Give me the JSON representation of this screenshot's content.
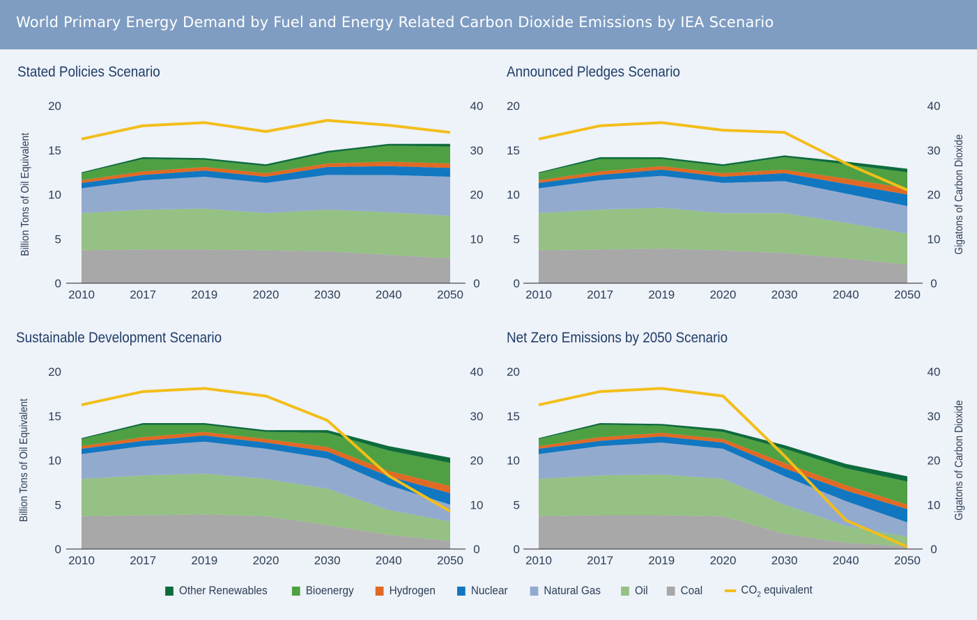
{
  "header": {
    "title": "World Primary Energy Demand by Fuel and Energy Related Carbon Dioxide Emissions by IEA Scenario"
  },
  "legend": [
    {
      "key": "other_renewables",
      "label": "Other Renewables",
      "color": "#0e6b3c",
      "kind": "box"
    },
    {
      "key": "bioenergy",
      "label": "Bioenergy",
      "color": "#4fa043",
      "kind": "box"
    },
    {
      "key": "hydrogen",
      "label": "Hydrogen",
      "color": "#e06a25",
      "kind": "box"
    },
    {
      "key": "nuclear",
      "label": "Nuclear",
      "color": "#1177c0",
      "kind": "box"
    },
    {
      "key": "natural_gas",
      "label": "Natural Gas",
      "color": "#93aacf",
      "kind": "box"
    },
    {
      "key": "oil",
      "label": "Oil",
      "color": "#95c184",
      "kind": "box"
    },
    {
      "key": "coal",
      "label": "Coal",
      "color": "#a8a8a8",
      "kind": "box"
    },
    {
      "key": "co2",
      "label": "CO2 equivalent",
      "color": "#f2be1a",
      "kind": "line"
    }
  ],
  "chart_data": [
    {
      "type": "area",
      "title": "Stated Policies Scenario",
      "ylabel": "Billion Tons of Oil Equivalent",
      "y2label": "",
      "categories": [
        "2010",
        "2017",
        "2019",
        "2020",
        "2030",
        "2040",
        "2050"
      ],
      "ylim": [
        0,
        20
      ],
      "yticks": [
        "0",
        "5",
        "10",
        "15",
        "20"
      ],
      "y2lim": [
        0,
        40
      ],
      "y2ticks": [
        "0",
        "10",
        "20",
        "30",
        "40"
      ],
      "series": [
        {
          "name": "Coal",
          "values": [
            3.7,
            3.8,
            3.8,
            3.7,
            3.6,
            3.2,
            2.8
          ]
        },
        {
          "name": "Oil",
          "values": [
            4.2,
            4.5,
            4.6,
            4.2,
            4.7,
            4.8,
            4.8
          ]
        },
        {
          "name": "Natural Gas",
          "values": [
            2.8,
            3.3,
            3.6,
            3.4,
            3.9,
            4.2,
            4.4
          ]
        },
        {
          "name": "Nuclear",
          "values": [
            0.6,
            0.6,
            0.7,
            0.7,
            0.9,
            1.0,
            1.0
          ]
        },
        {
          "name": "Hydrogen",
          "values": [
            0.3,
            0.4,
            0.4,
            0.4,
            0.4,
            0.5,
            0.5
          ]
        },
        {
          "name": "Bioenergy",
          "values": [
            0.8,
            1.4,
            0.8,
            0.8,
            1.2,
            1.8,
            1.9
          ]
        },
        {
          "name": "Other Renewables",
          "values": [
            0.1,
            0.2,
            0.2,
            0.2,
            0.2,
            0.2,
            0.3
          ]
        }
      ],
      "co2": {
        "name": "CO2 equivalent",
        "values": [
          32.5,
          35.5,
          36.2,
          34.2,
          36.7,
          35.6,
          34.0
        ]
      }
    },
    {
      "type": "area",
      "title": "Announced Pledges Scenario",
      "ylabel": "",
      "y2label": "Gigatons of Carbon Dioxide",
      "categories": [
        "2010",
        "2017",
        "2019",
        "2020",
        "2030",
        "2040",
        "2050"
      ],
      "ylim": [
        0,
        20
      ],
      "yticks": [
        "0",
        "5",
        "10",
        "15",
        "20"
      ],
      "y2lim": [
        0,
        40
      ],
      "y2ticks": [
        "0",
        "10",
        "20",
        "30",
        "40"
      ],
      "series": [
        {
          "name": "Coal",
          "values": [
            3.7,
            3.8,
            3.9,
            3.7,
            3.4,
            2.8,
            2.1
          ]
        },
        {
          "name": "Oil",
          "values": [
            4.2,
            4.5,
            4.6,
            4.2,
            4.5,
            4.0,
            3.5
          ]
        },
        {
          "name": "Natural Gas",
          "values": [
            2.8,
            3.3,
            3.6,
            3.4,
            3.6,
            3.3,
            3.1
          ]
        },
        {
          "name": "Nuclear",
          "values": [
            0.6,
            0.6,
            0.7,
            0.7,
            0.9,
            1.1,
            1.3
          ]
        },
        {
          "name": "Hydrogen",
          "values": [
            0.3,
            0.4,
            0.4,
            0.4,
            0.4,
            0.6,
            0.7
          ]
        },
        {
          "name": "Bioenergy",
          "values": [
            0.8,
            1.4,
            0.8,
            0.8,
            1.4,
            1.6,
            1.8
          ]
        },
        {
          "name": "Other Renewables",
          "values": [
            0.1,
            0.2,
            0.2,
            0.2,
            0.2,
            0.3,
            0.4
          ]
        }
      ],
      "co2": {
        "name": "CO2 equivalent",
        "values": [
          32.5,
          35.5,
          36.2,
          34.5,
          34.0,
          27.0,
          21.0
        ]
      }
    },
    {
      "type": "area",
      "title": "Sustainable Development Scenario",
      "ylabel": "Billion Tons of Oil Equivalent",
      "y2label": "",
      "categories": [
        "2010",
        "2017",
        "2019",
        "2020",
        "2030",
        "2040",
        "2050"
      ],
      "ylim": [
        0,
        20
      ],
      "yticks": [
        "0",
        "5",
        "10",
        "15",
        "20"
      ],
      "y2lim": [
        0,
        40
      ],
      "y2ticks": [
        "0",
        "10",
        "20",
        "30",
        "40"
      ],
      "series": [
        {
          "name": "Coal",
          "values": [
            3.7,
            3.8,
            3.9,
            3.7,
            2.7,
            1.6,
            0.9
          ]
        },
        {
          "name": "Oil",
          "values": [
            4.2,
            4.5,
            4.6,
            4.2,
            4.1,
            2.8,
            2.2
          ]
        },
        {
          "name": "Natural Gas",
          "values": [
            2.8,
            3.3,
            3.6,
            3.4,
            3.4,
            2.8,
            1.9
          ]
        },
        {
          "name": "Nuclear",
          "values": [
            0.6,
            0.6,
            0.7,
            0.7,
            0.8,
            1.0,
            1.3
          ]
        },
        {
          "name": "Hydrogen",
          "values": [
            0.3,
            0.4,
            0.4,
            0.4,
            0.5,
            0.6,
            0.8
          ]
        },
        {
          "name": "Bioenergy",
          "values": [
            0.8,
            1.4,
            0.8,
            0.8,
            1.6,
            2.3,
            2.6
          ]
        },
        {
          "name": "Other Renewables",
          "values": [
            0.1,
            0.2,
            0.2,
            0.2,
            0.3,
            0.5,
            0.6
          ]
        }
      ],
      "co2": {
        "name": "CO2 equivalent",
        "values": [
          32.5,
          35.5,
          36.2,
          34.5,
          29.0,
          16.5,
          8.5
        ]
      }
    },
    {
      "type": "area",
      "title": "Net Zero Emissions by 2050 Scenario",
      "ylabel": "",
      "y2label": "Gigatons of Carbon Dioxide",
      "categories": [
        "2010",
        "2017",
        "2019",
        "2020",
        "2030",
        "2040",
        "2050"
      ],
      "ylim": [
        0,
        20
      ],
      "yticks": [
        "0",
        "5",
        "10",
        "15",
        "20"
      ],
      "y2lim": [
        0,
        40
      ],
      "y2ticks": [
        "0",
        "10",
        "20",
        "30",
        "40"
      ],
      "series": [
        {
          "name": "Coal",
          "values": [
            3.7,
            3.8,
            3.8,
            3.7,
            1.7,
            0.7,
            0.3
          ]
        },
        {
          "name": "Oil",
          "values": [
            4.2,
            4.5,
            4.6,
            4.2,
            3.3,
            1.9,
            1.1
          ]
        },
        {
          "name": "Natural Gas",
          "values": [
            2.8,
            3.3,
            3.6,
            3.4,
            3.2,
            2.8,
            1.6
          ]
        },
        {
          "name": "Nuclear",
          "values": [
            0.6,
            0.6,
            0.7,
            0.7,
            0.9,
            1.2,
            1.5
          ]
        },
        {
          "name": "Hydrogen",
          "values": [
            0.3,
            0.4,
            0.4,
            0.4,
            0.6,
            0.6,
            0.5
          ]
        },
        {
          "name": "Bioenergy",
          "values": [
            0.8,
            1.4,
            0.8,
            0.8,
            1.6,
            1.9,
            2.6
          ]
        },
        {
          "name": "Other Renewables",
          "values": [
            0.1,
            0.2,
            0.2,
            0.3,
            0.4,
            0.5,
            0.6
          ]
        }
      ],
      "co2": {
        "name": "CO2 equivalent",
        "values": [
          32.5,
          35.5,
          36.2,
          34.5,
          21.0,
          6.5,
          0.5
        ]
      }
    }
  ]
}
